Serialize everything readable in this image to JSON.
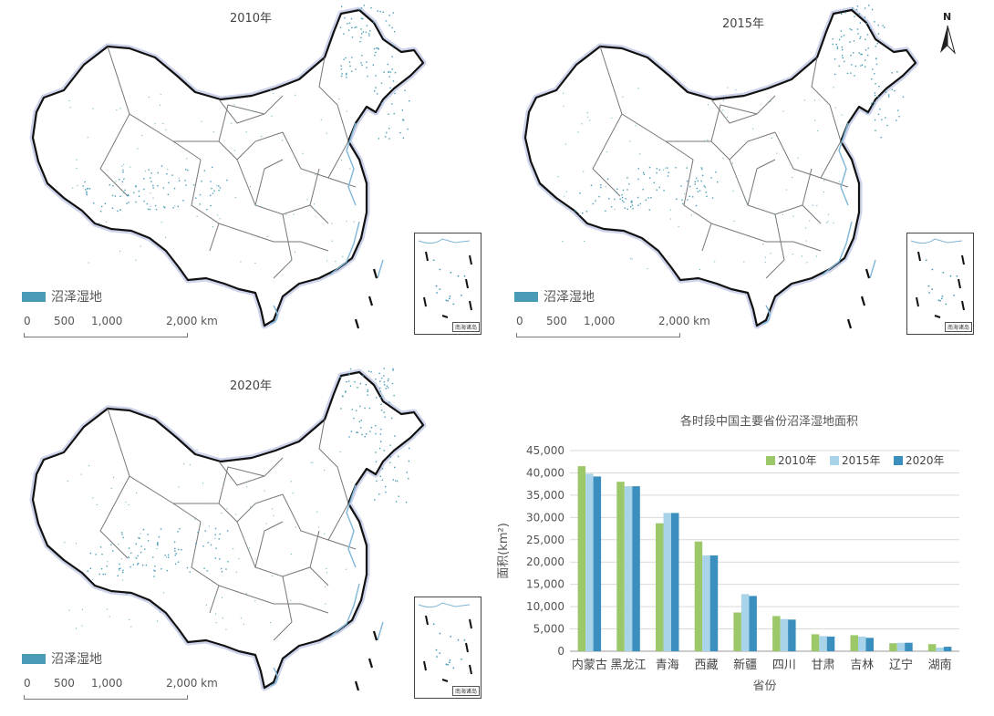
{
  "maps": [
    {
      "title": "2010年"
    },
    {
      "title": "2015年"
    },
    {
      "title": "2020年"
    }
  ],
  "legend": {
    "label": "沼泽湿地",
    "color": "#4a9cb6"
  },
  "scale_bar": {
    "labels": [
      "0",
      "500",
      "1,000",
      "2,000 km"
    ]
  },
  "inset": {
    "label": "南海诸岛"
  },
  "north_arrow": {
    "label": "N",
    "icon": "north-arrow-icon"
  },
  "chart_data": {
    "type": "bar",
    "title": "各时段中国主要省份沼泽湿地面积",
    "xlabel": "省份",
    "ylabel": "面积(km²)",
    "ylim": [
      0,
      45000
    ],
    "yticks": [
      "0",
      "5,000",
      "10,000",
      "15,000",
      "20,000",
      "25,000",
      "30,000",
      "35,000",
      "40,000",
      "45,000"
    ],
    "categories": [
      "内蒙古",
      "黑龙江",
      "青海",
      "西藏",
      "新疆",
      "四川",
      "甘肃",
      "吉林",
      "辽宁",
      "湖南"
    ],
    "series": [
      {
        "name": "2010年",
        "color": "#9dc86a",
        "values": [
          41500,
          38000,
          28700,
          24600,
          8700,
          7900,
          3800,
          3600,
          1800,
          1600
        ]
      },
      {
        "name": "2015年",
        "color": "#a9d3e8",
        "values": [
          39800,
          37000,
          31000,
          21500,
          12800,
          7200,
          3400,
          3300,
          1900,
          800
        ]
      },
      {
        "name": "2020年",
        "color": "#3a8fbf",
        "values": [
          39200,
          37000,
          31000,
          21500,
          12400,
          7100,
          3300,
          3000,
          1900,
          1000
        ]
      }
    ],
    "grid": true,
    "legend_position": "top-right"
  }
}
